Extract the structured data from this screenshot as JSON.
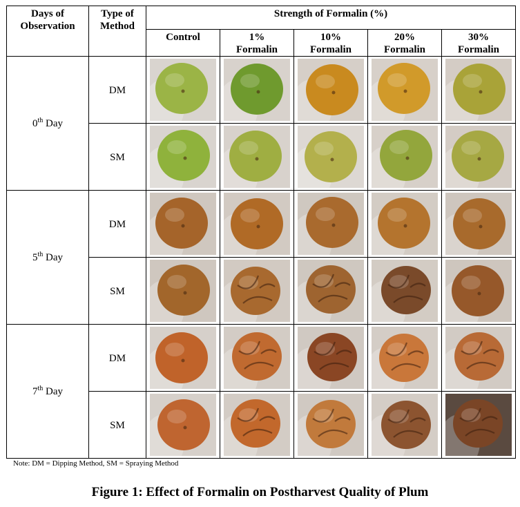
{
  "header": {
    "days_col": "Days of Observation",
    "days_col_lines": [
      "Days of",
      "Observation"
    ],
    "method_col_lines": [
      "Type of",
      "Method"
    ],
    "strength_title": "Strength of Formalin (%)",
    "treatments": [
      {
        "line1": "Control",
        "line2": ""
      },
      {
        "line1": "1%",
        "line2": "Formalin"
      },
      {
        "line1": "10%",
        "line2": "Formalin"
      },
      {
        "line1": "20%",
        "line2": "Formalin"
      },
      {
        "line1": "30%",
        "line2": "Formalin"
      }
    ]
  },
  "groups": [
    {
      "day_num": "0",
      "day_sup": "th",
      "day_word": " Day",
      "rows": [
        {
          "method": "DM",
          "photos": [
            {
              "fruit": "#9bb446",
              "bg": "#d9d4cf",
              "shriveled": false
            },
            {
              "fruit": "#6f9a2e",
              "bg": "#d8d2cc",
              "shriveled": false
            },
            {
              "fruit": "#c98a1f",
              "bg": "#d6cfc8",
              "shriveled": false
            },
            {
              "fruit": "#d19a2a",
              "bg": "#d7d0c9",
              "shriveled": false
            },
            {
              "fruit": "#a9a338",
              "bg": "#d4ccc5",
              "shriveled": false
            }
          ]
        },
        {
          "method": "SM",
          "photos": [
            {
              "fruit": "#8fb23c",
              "bg": "#d9d4cf",
              "shriveled": false
            },
            {
              "fruit": "#9fae42",
              "bg": "#d8d2cc",
              "shriveled": false
            },
            {
              "fruit": "#b3b04c",
              "bg": "#ddd8d3",
              "shriveled": false
            },
            {
              "fruit": "#93a63c",
              "bg": "#d7d0c9",
              "shriveled": false
            },
            {
              "fruit": "#a6a843",
              "bg": "#d4ccc5",
              "shriveled": false
            }
          ]
        }
      ]
    },
    {
      "day_num": "5",
      "day_sup": "th",
      "day_word": " Day",
      "rows": [
        {
          "method": "DM",
          "photos": [
            {
              "fruit": "#a5642a",
              "bg": "#cfc7bf",
              "shriveled": false
            },
            {
              "fruit": "#b06a26",
              "bg": "#d2cac2",
              "shriveled": false
            },
            {
              "fruit": "#a96a2e",
              "bg": "#cfc8c0",
              "shriveled": false
            },
            {
              "fruit": "#b4742e",
              "bg": "#d3ccc4",
              "shriveled": false
            },
            {
              "fruit": "#a86a2c",
              "bg": "#cec6be",
              "shriveled": false
            }
          ]
        },
        {
          "method": "SM",
          "photos": [
            {
              "fruit": "#a2662b",
              "bg": "#cfc7bf",
              "shriveled": false
            },
            {
              "fruit": "#a8692f",
              "bg": "#d2cac2",
              "shriveled": true
            },
            {
              "fruit": "#9e6430",
              "bg": "#cfc8c0",
              "shriveled": true
            },
            {
              "fruit": "#7a4a2a",
              "bg": "#d3ccc4",
              "shriveled": true
            },
            {
              "fruit": "#96582a",
              "bg": "#cec6be",
              "shriveled": false
            }
          ]
        }
      ]
    },
    {
      "day_num": "7",
      "day_sup": "th",
      "day_word": " Day",
      "rows": [
        {
          "method": "DM",
          "photos": [
            {
              "fruit": "#c0632a",
              "bg": "#d6d0ca",
              "shriveled": false
            },
            {
              "fruit": "#c06a30",
              "bg": "#d3ccc5",
              "shriveled": true
            },
            {
              "fruit": "#8a4624",
              "bg": "#d0c9c2",
              "shriveled": true
            },
            {
              "fruit": "#c9773a",
              "bg": "#d4cdc6",
              "shriveled": true
            },
            {
              "fruit": "#b86a36",
              "bg": "#d2cbc4",
              "shriveled": true
            }
          ]
        },
        {
          "method": "SM",
          "photos": [
            {
              "fruit": "#bf6530",
              "bg": "#d6d0ca",
              "shriveled": false
            },
            {
              "fruit": "#c2682c",
              "bg": "#d3ccc5",
              "shriveled": true
            },
            {
              "fruit": "#c17a3c",
              "bg": "#d0c9c2",
              "shriveled": true
            },
            {
              "fruit": "#8c5430",
              "bg": "#d4cdc6",
              "shriveled": true
            },
            {
              "fruit": "#7a4526",
              "bg": "#5a4a40",
              "shriveled": true
            }
          ]
        }
      ]
    }
  ],
  "note": "Note: DM = Dipping Method, SM = Spraying Method",
  "caption": "Figure 1: Effect of Formalin on Postharvest Quality of Plum"
}
